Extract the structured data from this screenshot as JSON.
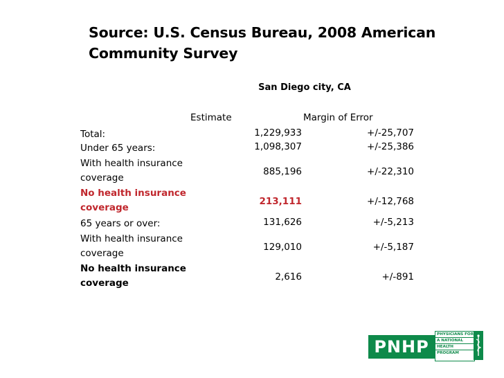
{
  "slide": {
    "title": "Source: U.S. Census Bureau, 2008 American Community Survey",
    "location": "San Diego city, CA",
    "col_estimate": "Estimate",
    "col_margin": "Margin of Error",
    "rows": [
      {
        "label": "Total:",
        "estimate": "1,229,933",
        "margin": "+/-25,707"
      },
      {
        "label": "Under 65 years:",
        "estimate": "1,098,307",
        "margin": "+/-25,386"
      },
      {
        "label": "With health insurance coverage",
        "estimate": "885,196",
        "margin": "+/-22,310"
      },
      {
        "label": "No health insurance coverage",
        "estimate": "213,111",
        "margin": "+/-12,768"
      },
      {
        "label": "65 years or over:",
        "estimate": "131,626",
        "margin": "+/-5,213"
      },
      {
        "label": "With health insurance coverage",
        "estimate": "129,010",
        "margin": "+/-5,187"
      },
      {
        "label": "No health insurance coverage",
        "estimate": "2,616",
        "margin": "+/-891"
      }
    ]
  },
  "logo": {
    "name": "PNHP",
    "lines": [
      "PHYSICIANS FOR",
      "A NATIONAL",
      "HEALTH",
      "PROGRAM"
    ],
    "emblem": "caduceus-icon",
    "color": "#0e8a4a"
  },
  "colors": {
    "highlight": "#c0272d"
  }
}
